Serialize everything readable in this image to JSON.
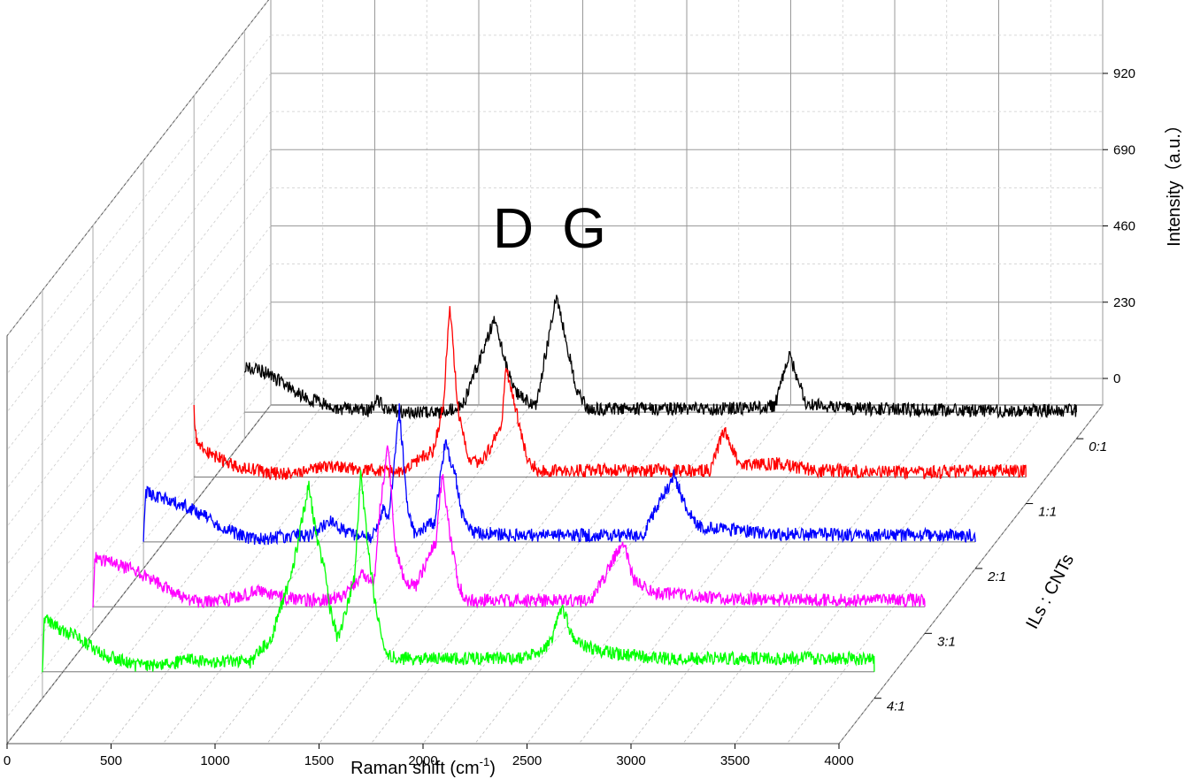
{
  "chart_data": {
    "type": "line",
    "style": "3d-waterfall",
    "grid": true,
    "x_axis": {
      "label": "Raman shift (cm",
      "label_superscript": "-1",
      "label_suffix": ")",
      "range": [
        0,
        4000
      ],
      "ticks": [
        0,
        500,
        1000,
        1500,
        2000,
        2500,
        3000,
        3500,
        4000
      ]
    },
    "z_axis": {
      "label": "Intensity（a.u.）",
      "range": [
        -80,
        1150
      ],
      "ticks": [
        0,
        230,
        460,
        690,
        920
      ]
    },
    "depth_axis": {
      "label": "ILs : CNTs",
      "categories": [
        "0:1",
        "1:1",
        "2:1",
        "3:1",
        "4:1"
      ]
    },
    "annotations": [
      "D",
      "G"
    ],
    "series": [
      {
        "category": "0:1",
        "color": "#000000",
        "points": [
          [
            0,
            140
          ],
          [
            100,
            120
          ],
          [
            150,
            100
          ],
          [
            250,
            60
          ],
          [
            350,
            30
          ],
          [
            450,
            10
          ],
          [
            600,
            5
          ],
          [
            640,
            40
          ],
          [
            680,
            5
          ],
          [
            800,
            0
          ],
          [
            950,
            0
          ],
          [
            1050,
            20
          ],
          [
            1200,
            280
          ],
          [
            1250,
            160
          ],
          [
            1300,
            60
          ],
          [
            1400,
            15
          ],
          [
            1500,
            350
          ],
          [
            1600,
            60
          ],
          [
            1650,
            10
          ],
          [
            2000,
            10
          ],
          [
            2200,
            10
          ],
          [
            2450,
            15
          ],
          [
            2550,
            20
          ],
          [
            2620,
            170
          ],
          [
            2700,
            30
          ],
          [
            2800,
            15
          ],
          [
            3000,
            10
          ],
          [
            3500,
            5
          ],
          [
            4000,
            5
          ]
        ]
      },
      {
        "category": "1:1",
        "color": "#ff0000",
        "points": [
          [
            0,
            200
          ],
          [
            10,
            120
          ],
          [
            50,
            80
          ],
          [
            200,
            30
          ],
          [
            400,
            10
          ],
          [
            500,
            10
          ],
          [
            600,
            30
          ],
          [
            700,
            30
          ],
          [
            800,
            20
          ],
          [
            950,
            20
          ],
          [
            1000,
            20
          ],
          [
            1050,
            40
          ],
          [
            1150,
            80
          ],
          [
            1200,
            220
          ],
          [
            1230,
            520
          ],
          [
            1270,
            200
          ],
          [
            1330,
            40
          ],
          [
            1390,
            50
          ],
          [
            1480,
            160
          ],
          [
            1500,
            330
          ],
          [
            1550,
            200
          ],
          [
            1600,
            60
          ],
          [
            1650,
            20
          ],
          [
            1800,
            20
          ],
          [
            2000,
            20
          ],
          [
            2300,
            20
          ],
          [
            2350,
            20
          ],
          [
            2480,
            20
          ],
          [
            2550,
            140
          ],
          [
            2620,
            40
          ],
          [
            2800,
            40
          ],
          [
            3000,
            20
          ],
          [
            3500,
            15
          ],
          [
            4000,
            20
          ]
        ]
      },
      {
        "category": "2:1",
        "color": "#0000ff",
        "points": [
          [
            0,
            0
          ],
          [
            10,
            150
          ],
          [
            50,
            140
          ],
          [
            200,
            110
          ],
          [
            400,
            40
          ],
          [
            500,
            10
          ],
          [
            600,
            10
          ],
          [
            700,
            20
          ],
          [
            800,
            20
          ],
          [
            900,
            60
          ],
          [
            950,
            40
          ],
          [
            1000,
            20
          ],
          [
            1100,
            10
          ],
          [
            1150,
            100
          ],
          [
            1180,
            70
          ],
          [
            1230,
            400
          ],
          [
            1270,
            100
          ],
          [
            1300,
            30
          ],
          [
            1400,
            60
          ],
          [
            1450,
            300
          ],
          [
            1500,
            200
          ],
          [
            1530,
            90
          ],
          [
            1580,
            30
          ],
          [
            1800,
            20
          ],
          [
            2000,
            20
          ],
          [
            2300,
            20
          ],
          [
            2400,
            20
          ],
          [
            2550,
            200
          ],
          [
            2600,
            120
          ],
          [
            2650,
            60
          ],
          [
            2700,
            40
          ],
          [
            2800,
            40
          ],
          [
            3000,
            25
          ],
          [
            3500,
            20
          ],
          [
            4000,
            20
          ]
        ]
      },
      {
        "category": "3:1",
        "color": "#ff00ff",
        "points": [
          [
            0,
            0
          ],
          [
            10,
            150
          ],
          [
            50,
            140
          ],
          [
            200,
            110
          ],
          [
            400,
            40
          ],
          [
            500,
            15
          ],
          [
            600,
            15
          ],
          [
            700,
            30
          ],
          [
            800,
            50
          ],
          [
            900,
            30
          ],
          [
            1000,
            20
          ],
          [
            1100,
            20
          ],
          [
            1200,
            30
          ],
          [
            1300,
            100
          ],
          [
            1350,
            60
          ],
          [
            1380,
            300
          ],
          [
            1420,
            500
          ],
          [
            1450,
            180
          ],
          [
            1500,
            80
          ],
          [
            1550,
            60
          ],
          [
            1650,
            200
          ],
          [
            1680,
            400
          ],
          [
            1720,
            200
          ],
          [
            1760,
            60
          ],
          [
            1800,
            20
          ],
          [
            2000,
            20
          ],
          [
            2300,
            20
          ],
          [
            2400,
            20
          ],
          [
            2550,
            200
          ],
          [
            2600,
            80
          ],
          [
            2700,
            40
          ],
          [
            2800,
            40
          ],
          [
            3000,
            25
          ],
          [
            3500,
            20
          ],
          [
            4000,
            20
          ]
        ]
      },
      {
        "category": "4:1",
        "color": "#00ff00",
        "points": [
          [
            0,
            0
          ],
          [
            10,
            160
          ],
          [
            50,
            140
          ],
          [
            150,
            110
          ],
          [
            300,
            50
          ],
          [
            450,
            20
          ],
          [
            600,
            20
          ],
          [
            700,
            40
          ],
          [
            800,
            30
          ],
          [
            900,
            30
          ],
          [
            1000,
            30
          ],
          [
            1100,
            100
          ],
          [
            1200,
            300
          ],
          [
            1280,
            560
          ],
          [
            1320,
            400
          ],
          [
            1360,
            300
          ],
          [
            1380,
            200
          ],
          [
            1420,
            100
          ],
          [
            1500,
            280
          ],
          [
            1530,
            600
          ],
          [
            1570,
            350
          ],
          [
            1600,
            200
          ],
          [
            1650,
            60
          ],
          [
            1700,
            40
          ],
          [
            1800,
            40
          ],
          [
            2000,
            40
          ],
          [
            2300,
            40
          ],
          [
            2400,
            60
          ],
          [
            2450,
            100
          ],
          [
            2500,
            200
          ],
          [
            2550,
            100
          ],
          [
            2600,
            80
          ],
          [
            2700,
            60
          ],
          [
            2800,
            50
          ],
          [
            3000,
            40
          ],
          [
            3500,
            40
          ],
          [
            4000,
            40
          ]
        ]
      }
    ]
  }
}
